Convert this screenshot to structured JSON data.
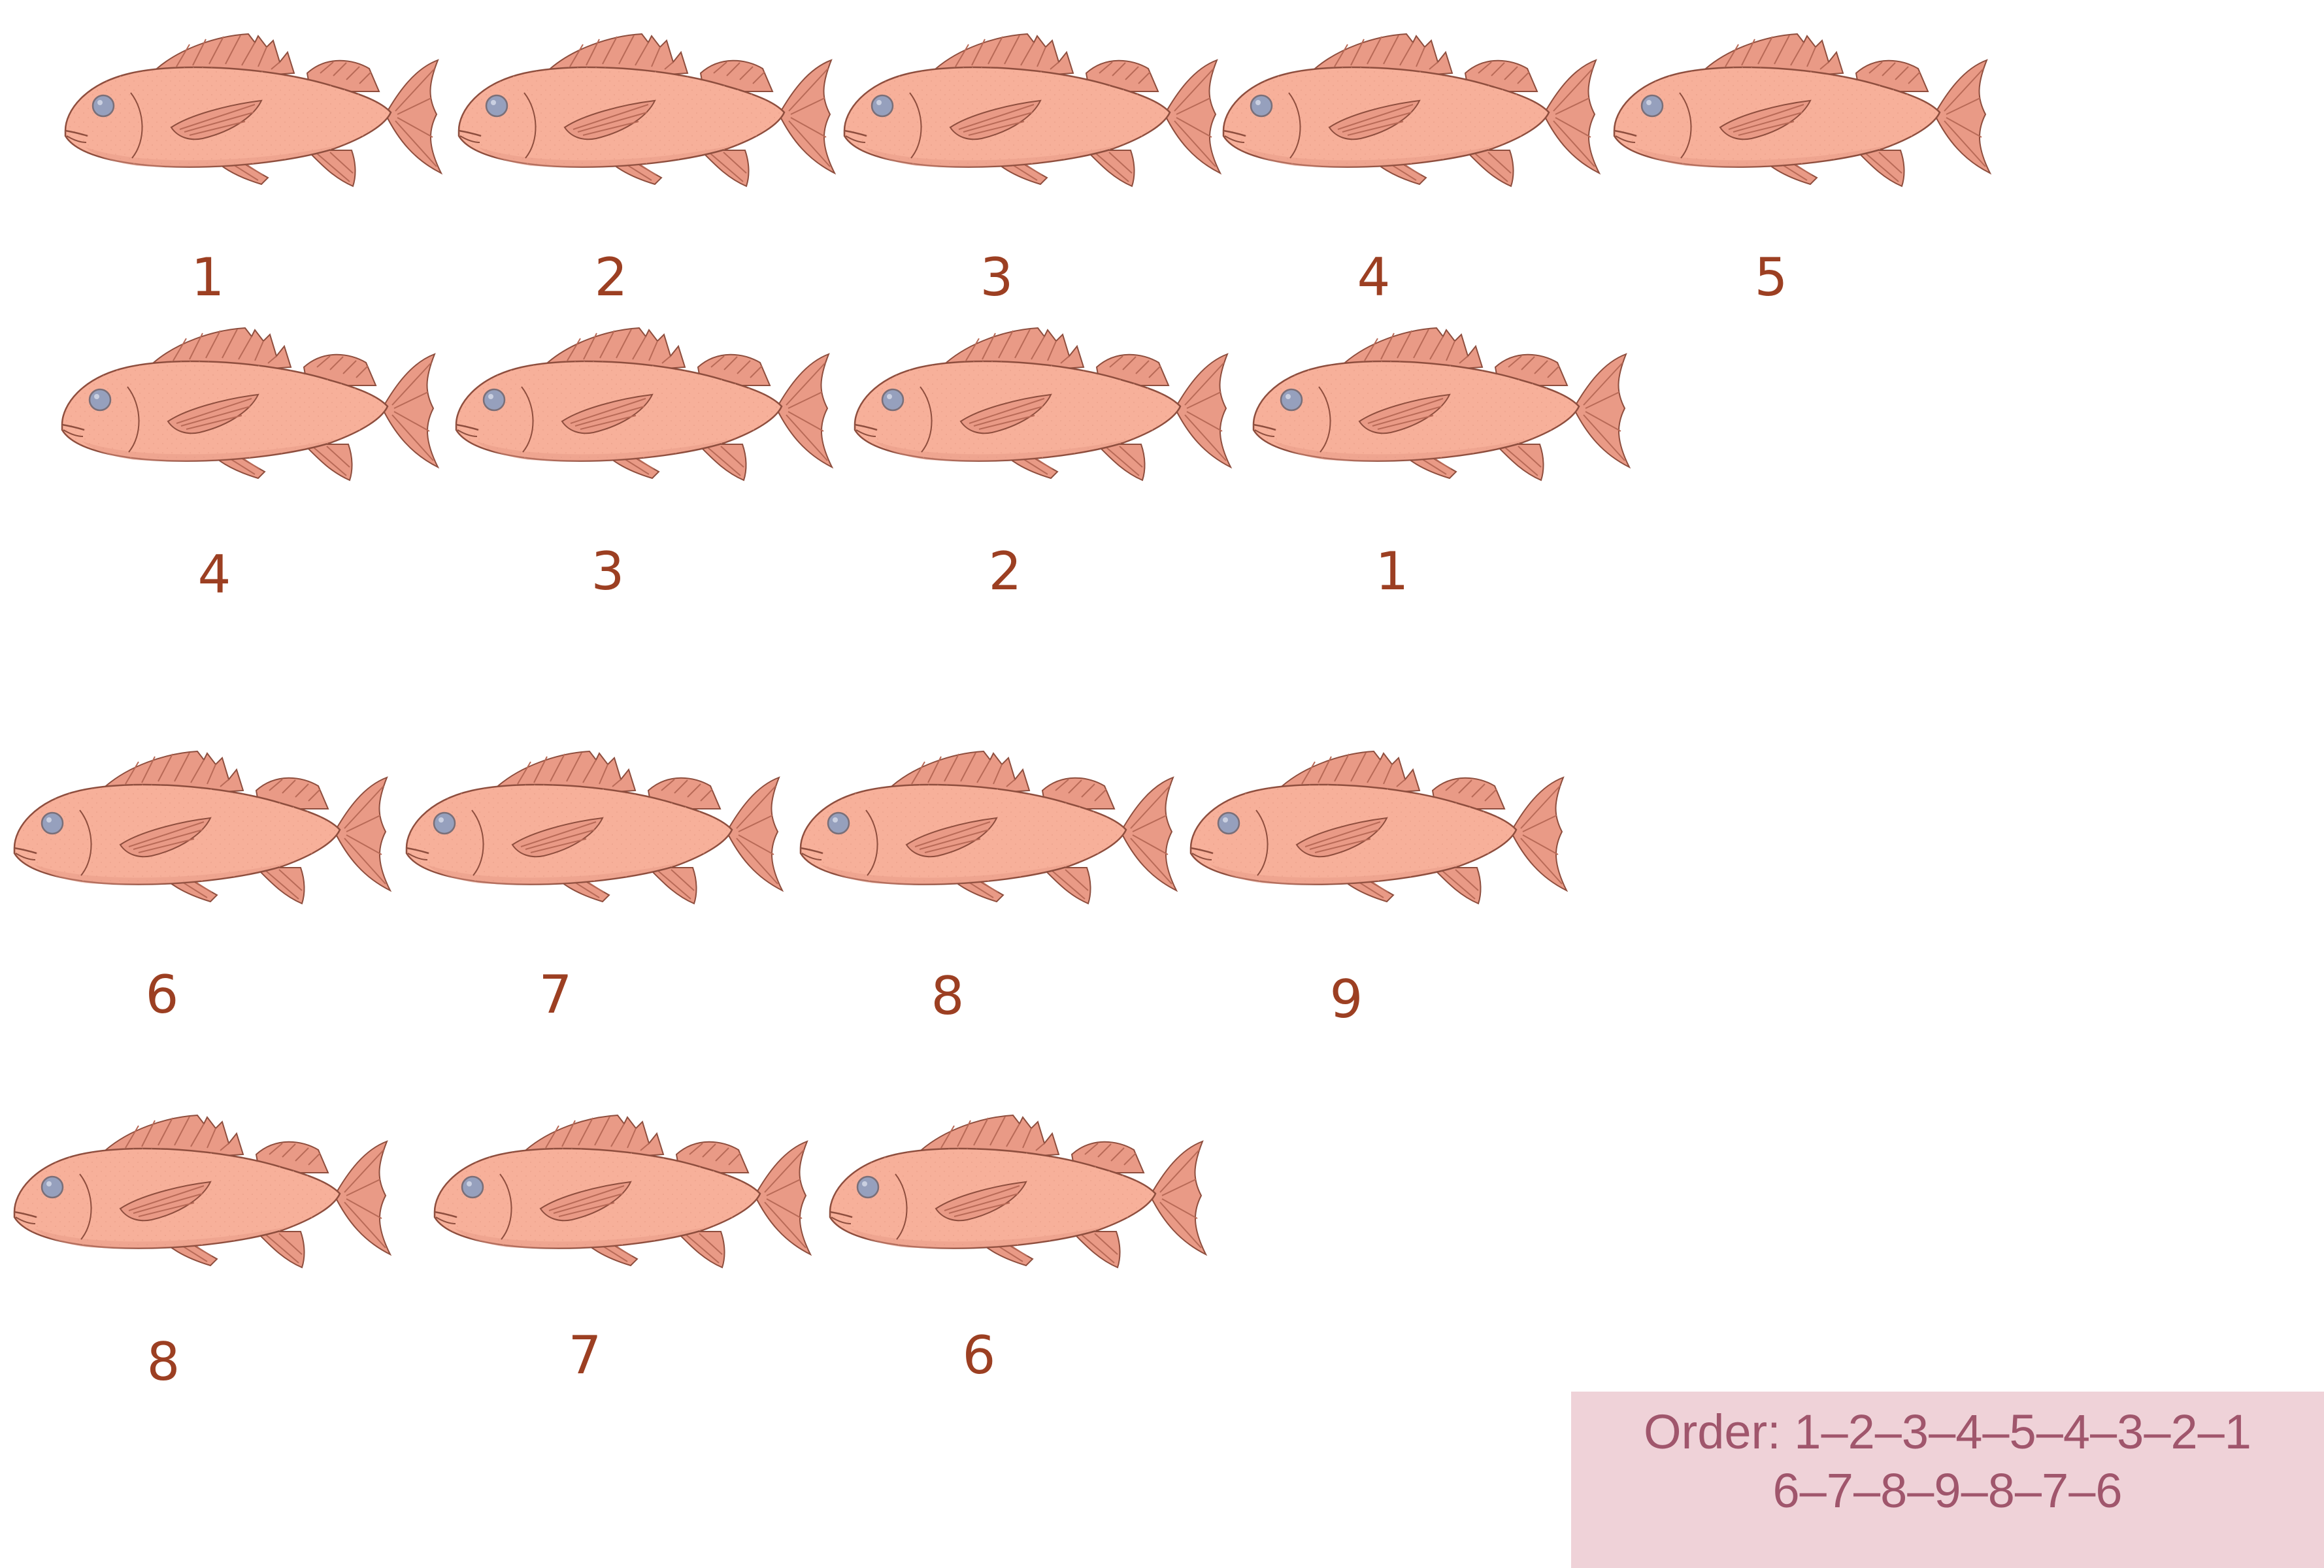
{
  "colors": {
    "fish_body": "#f7b09a",
    "fish_fin": "#e99a86",
    "fish_outline": "#8e4e3e",
    "fish_eye": "#96a0bd",
    "label_text": "#9c3f22",
    "panel_background": "#efd2d8",
    "panel_text": "#a0566c"
  },
  "fish_icon": "fish-icon",
  "fish": [
    {
      "label": "1"
    },
    {
      "label": "2"
    },
    {
      "label": "3"
    },
    {
      "label": "4"
    },
    {
      "label": "5"
    },
    {
      "label": "4"
    },
    {
      "label": "3"
    },
    {
      "label": "2"
    },
    {
      "label": "1"
    },
    {
      "label": "6"
    },
    {
      "label": "7"
    },
    {
      "label": "8"
    },
    {
      "label": "9"
    },
    {
      "label": "8"
    },
    {
      "label": "7"
    },
    {
      "label": "6"
    }
  ],
  "order_note": {
    "line1": "Order: 1–2–3–4–5–4–3–2–1",
    "line2": "6–7–8–9–8–7–6"
  }
}
